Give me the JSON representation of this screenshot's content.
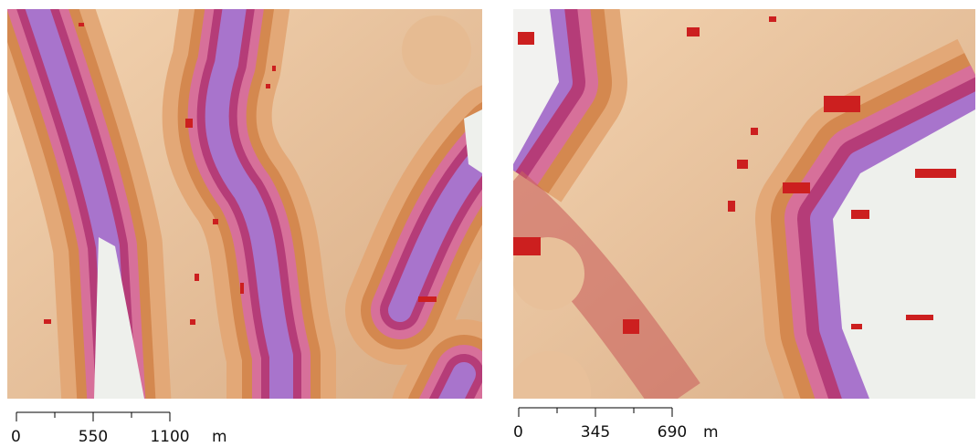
{
  "maps": [
    {
      "scale_bar": {
        "ticks": [
          "0",
          "550",
          "1100"
        ],
        "unit": "m"
      }
    },
    {
      "scale_bar": {
        "ticks": [
          "0",
          "345",
          "690"
        ],
        "unit": "m"
      }
    }
  ]
}
